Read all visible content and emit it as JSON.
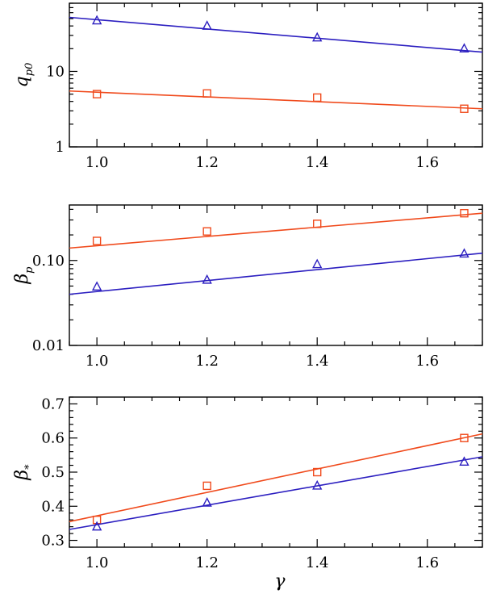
{
  "figure": {
    "xlabel": "γ"
  },
  "chart_data": [
    {
      "type": "scatter",
      "ylabel": "q",
      "ylabel_sub": "p0",
      "yscale": "log",
      "xlim": [
        0.95,
        1.7
      ],
      "ylim": [
        1,
        80
      ],
      "x_ticks": [
        1.0,
        1.2,
        1.4,
        1.6
      ],
      "x_tick_labels": [
        "1.0",
        "1.2",
        "1.4",
        "1.6"
      ],
      "y_ticks": [
        1,
        10
      ],
      "y_tick_labels": [
        "1",
        "10"
      ],
      "series": [
        {
          "name": "triangles",
          "marker": "triangle",
          "color": "#2c1fc0",
          "x": [
            1.0,
            1.2,
            1.4,
            1.667
          ],
          "y": [
            47,
            40,
            28,
            20
          ],
          "fit": {
            "x": [
              0.95,
              1.7
            ],
            "y": [
              52,
              18
            ]
          }
        },
        {
          "name": "squares",
          "marker": "square",
          "color": "#f04a1c",
          "x": [
            1.0,
            1.2,
            1.4,
            1.667
          ],
          "y": [
            5.0,
            5.1,
            4.5,
            3.2
          ],
          "fit": {
            "x": [
              0.95,
              1.7
            ],
            "y": [
              5.5,
              3.2
            ]
          }
        }
      ]
    },
    {
      "type": "scatter",
      "ylabel": "β",
      "ylabel_sub": "p",
      "yscale": "log",
      "xlim": [
        0.95,
        1.7
      ],
      "ylim": [
        0.01,
        0.45
      ],
      "x_ticks": [
        1.0,
        1.2,
        1.4,
        1.6
      ],
      "x_tick_labels": [
        "1.0",
        "1.2",
        "1.4",
        "1.6"
      ],
      "y_ticks": [
        0.01,
        0.1
      ],
      "y_tick_labels": [
        "0.01",
        "0.10"
      ],
      "series": [
        {
          "name": "squares",
          "marker": "square",
          "color": "#f04a1c",
          "x": [
            1.0,
            1.2,
            1.4,
            1.667
          ],
          "y": [
            0.17,
            0.22,
            0.27,
            0.36
          ],
          "fit": {
            "x": [
              0.95,
              1.7
            ],
            "y": [
              0.14,
              0.36
            ]
          }
        },
        {
          "name": "triangles",
          "marker": "triangle",
          "color": "#2c1fc0",
          "x": [
            1.0,
            1.2,
            1.4,
            1.667
          ],
          "y": [
            0.049,
            0.059,
            0.09,
            0.12
          ],
          "fit": {
            "x": [
              0.95,
              1.7
            ],
            "y": [
              0.04,
              0.122
            ]
          }
        }
      ]
    },
    {
      "type": "scatter",
      "ylabel": "β",
      "ylabel_sub": "*",
      "yscale": "linear",
      "xlim": [
        0.95,
        1.7
      ],
      "ylim": [
        0.28,
        0.72
      ],
      "x_ticks": [
        1.0,
        1.2,
        1.4,
        1.6
      ],
      "x_tick_labels": [
        "1.0",
        "1.2",
        "1.4",
        "1.6"
      ],
      "y_ticks": [
        0.3,
        0.4,
        0.5,
        0.6,
        0.7
      ],
      "y_tick_labels": [
        "0.3",
        "0.4",
        "0.5",
        "0.6",
        "0.7"
      ],
      "series": [
        {
          "name": "squares",
          "marker": "square",
          "color": "#f04a1c",
          "x": [
            1.0,
            1.2,
            1.4,
            1.667
          ],
          "y": [
            0.36,
            0.46,
            0.5,
            0.6
          ],
          "fit": {
            "x": [
              0.95,
              1.7
            ],
            "y": [
              0.355,
              0.612
            ]
          }
        },
        {
          "name": "triangles",
          "marker": "triangle",
          "color": "#2c1fc0",
          "x": [
            1.0,
            1.2,
            1.4,
            1.667
          ],
          "y": [
            0.34,
            0.41,
            0.46,
            0.53
          ],
          "fit": {
            "x": [
              0.95,
              1.7
            ],
            "y": [
              0.332,
              0.545
            ]
          }
        }
      ]
    }
  ]
}
